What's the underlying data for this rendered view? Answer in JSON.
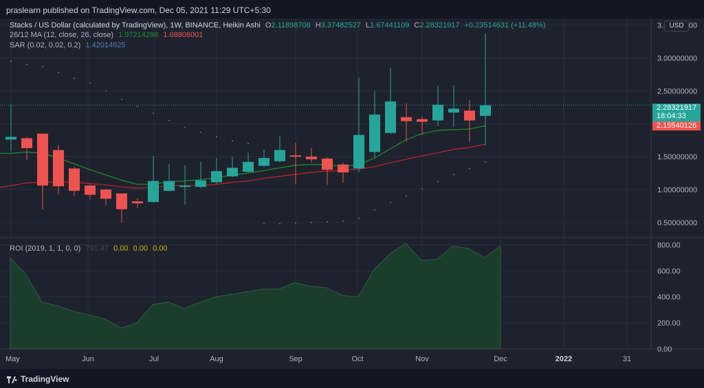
{
  "header": {
    "publisher": "praslearn published on TradingView.com, Dec 05, 2021 11:29 UTC+5:30"
  },
  "legend": {
    "title": "Stacks / US Dollar (calculated by TradingView), 1W, BINANCE, Heikin Ashi",
    "o_label": "O",
    "o": "2.11898708",
    "h_label": "H",
    "h": "3.37482527",
    "l_label": "L",
    "l": "1.67441109",
    "c_label": "C",
    "c": "2.28321917",
    "change": "+0.23514631 (+11.48%)",
    "ma_label": "26/12 MA (12, close, 26, close)",
    "ma1": "1.97214298",
    "ma2": "1.68806001",
    "sar_label": "SAR (0.02, 0.02, 0.2)",
    "sar": "1.42014625",
    "roi_label": "ROI (2019, 1, 1, 0, 0)",
    "roi_val": "791.47",
    "roi_a": "0.00",
    "roi_b": "0.00",
    "roi_c": "0.00"
  },
  "axis": {
    "currency": "USD",
    "last_price": "2.28321917",
    "countdown": "18:04:33",
    "ma_price": "2.15540126"
  },
  "brand": "TradingView",
  "colors": {
    "up": "#26a69a",
    "down": "#ef5350",
    "ma_fast": "#1b8a2f",
    "ma_slow": "#b2242a",
    "roi_fill": "#1b3d2c"
  },
  "chart_data": [
    {
      "type": "candlestick",
      "title": "Stacks / US Dollar (calculated by TradingView), 1W, BINANCE, Heikin Ashi",
      "x_labels": [
        "May",
        "Jun",
        "Jul",
        "Aug",
        "Sep",
        "Oct",
        "Nov",
        "Dec",
        "2022",
        "31"
      ],
      "y_ticks": [
        "3.50000000",
        "3.00000000",
        "2.50000000",
        "2.00000000",
        "1.50000000",
        "1.00000000",
        "0.50000000"
      ],
      "ylim": [
        0.3,
        3.6
      ],
      "candles": [
        {
          "o": 1.76,
          "h": 2.3,
          "l": 1.58,
          "c": 1.8
        },
        {
          "o": 1.78,
          "h": 1.8,
          "l": 1.45,
          "c": 1.63
        },
        {
          "o": 1.85,
          "h": 1.85,
          "l": 0.7,
          "c": 1.06
        },
        {
          "o": 1.6,
          "h": 1.68,
          "l": 0.92,
          "c": 1.05
        },
        {
          "o": 1.32,
          "h": 1.35,
          "l": 0.9,
          "c": 0.98
        },
        {
          "o": 1.06,
          "h": 1.09,
          "l": 0.85,
          "c": 0.92
        },
        {
          "o": 1.0,
          "h": 1.01,
          "l": 0.76,
          "c": 0.86
        },
        {
          "o": 0.94,
          "h": 0.94,
          "l": 0.5,
          "c": 0.7
        },
        {
          "o": 0.82,
          "h": 0.87,
          "l": 0.72,
          "c": 0.79
        },
        {
          "o": 0.81,
          "h": 1.51,
          "l": 0.8,
          "c": 1.13
        },
        {
          "o": 0.98,
          "h": 1.39,
          "l": 0.97,
          "c": 1.13
        },
        {
          "o": 1.06,
          "h": 1.37,
          "l": 0.77,
          "c": 1.06
        },
        {
          "o": 1.04,
          "h": 1.42,
          "l": 1.02,
          "c": 1.14
        },
        {
          "o": 1.11,
          "h": 1.48,
          "l": 1.09,
          "c": 1.28
        },
        {
          "o": 1.2,
          "h": 1.5,
          "l": 1.19,
          "c": 1.33
        },
        {
          "o": 1.27,
          "h": 1.56,
          "l": 1.25,
          "c": 1.42
        },
        {
          "o": 1.36,
          "h": 1.6,
          "l": 1.34,
          "c": 1.48
        },
        {
          "o": 1.43,
          "h": 1.81,
          "l": 1.42,
          "c": 1.6
        },
        {
          "o": 1.52,
          "h": 1.71,
          "l": 1.08,
          "c": 1.5
        },
        {
          "o": 1.5,
          "h": 1.63,
          "l": 1.41,
          "c": 1.46
        },
        {
          "o": 1.47,
          "h": 1.49,
          "l": 1.07,
          "c": 1.3
        },
        {
          "o": 1.38,
          "h": 1.41,
          "l": 1.1,
          "c": 1.26
        },
        {
          "o": 1.32,
          "h": 2.7,
          "l": 1.26,
          "c": 1.83
        },
        {
          "o": 1.57,
          "h": 2.5,
          "l": 1.48,
          "c": 2.14
        },
        {
          "o": 1.86,
          "h": 2.85,
          "l": 1.84,
          "c": 2.34
        },
        {
          "o": 2.1,
          "h": 2.31,
          "l": 1.73,
          "c": 2.04
        },
        {
          "o": 2.07,
          "h": 2.11,
          "l": 1.83,
          "c": 2.03
        },
        {
          "o": 2.05,
          "h": 2.58,
          "l": 1.96,
          "c": 2.29
        },
        {
          "o": 2.17,
          "h": 2.59,
          "l": 1.95,
          "c": 2.23
        },
        {
          "o": 2.2,
          "h": 2.36,
          "l": 1.73,
          "c": 2.05
        },
        {
          "o": 2.12,
          "h": 3.37,
          "l": 1.67,
          "c": 2.28
        }
      ],
      "ma_fast": [
        1.55,
        1.57,
        1.55,
        1.48,
        1.39,
        1.3,
        1.22,
        1.14,
        1.08,
        1.08,
        1.12,
        1.13,
        1.15,
        1.18,
        1.22,
        1.25,
        1.29,
        1.33,
        1.37,
        1.38,
        1.38,
        1.35,
        1.38,
        1.48,
        1.62,
        1.76,
        1.85,
        1.9,
        1.91,
        1.92,
        1.97
      ],
      "ma_slow": [
        1.06,
        1.1,
        1.11,
        1.12,
        1.11,
        1.09,
        1.07,
        1.04,
        1.02,
        1.03,
        1.06,
        1.06,
        1.06,
        1.08,
        1.11,
        1.13,
        1.17,
        1.2,
        1.23,
        1.26,
        1.28,
        1.29,
        1.31,
        1.35,
        1.41,
        1.46,
        1.51,
        1.56,
        1.61,
        1.64,
        1.69
      ],
      "sar": [
        2.95,
        2.9,
        2.87,
        2.78,
        2.69,
        2.62,
        2.5,
        2.37,
        2.26,
        2.16,
        2.05,
        1.95,
        1.87,
        1.8,
        1.74,
        1.7,
        0.48,
        0.48,
        0.49,
        0.5,
        0.51,
        0.52,
        0.56,
        0.69,
        0.8,
        0.9,
        1.01,
        1.12,
        1.23,
        1.32,
        1.42
      ]
    },
    {
      "type": "area",
      "title": "ROI (2019, 1, 1, 0, 0)",
      "y_ticks": [
        "800.00",
        "600.00",
        "400.00",
        "200.00",
        "0.00"
      ],
      "ylim": [
        0,
        850
      ],
      "values": [
        700,
        570,
        360,
        330,
        290,
        260,
        230,
        160,
        200,
        340,
        360,
        310,
        360,
        400,
        420,
        440,
        460,
        460,
        510,
        480,
        470,
        410,
        400,
        610,
        730,
        810,
        680,
        690,
        790,
        770,
        700,
        791
      ]
    }
  ]
}
